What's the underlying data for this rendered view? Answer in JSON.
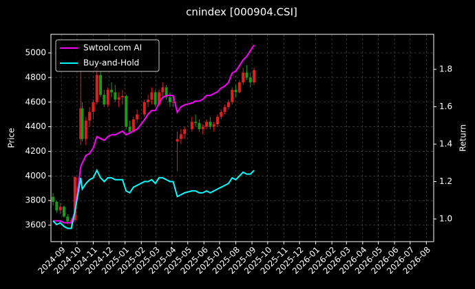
{
  "chart_data": {
    "type": "candlestick",
    "title": "cnindex [000904.CSI]",
    "ylabel": "Price",
    "y2label": "Return",
    "x": [
      "2024-08-16",
      "2024-08-23",
      "2024-08-30",
      "2024-09-06",
      "2024-09-13",
      "2024-09-20",
      "2024-09-27",
      "2024-10-08",
      "2024-10-11",
      "2024-10-18",
      "2024-10-25",
      "2024-11-01",
      "2024-11-08",
      "2024-11-15",
      "2024-11-22",
      "2024-11-29",
      "2024-12-06",
      "2024-12-13",
      "2024-12-20",
      "2024-12-27",
      "2025-01-03",
      "2025-01-10",
      "2025-01-17",
      "2025-01-24",
      "2025-02-07",
      "2025-02-14",
      "2025-02-21",
      "2025-02-28",
      "2025-03-07",
      "2025-03-14",
      "2025-03-21",
      "2025-03-28",
      "2025-04-03",
      "2025-04-11",
      "2025-04-18",
      "2025-04-25",
      "2025-05-09",
      "2025-05-16",
      "2025-05-23",
      "2025-05-30",
      "2025-06-06",
      "2025-06-13",
      "2025-06-20",
      "2025-06-27",
      "2025-07-04",
      "2025-07-11",
      "2025-07-18",
      "2025-07-25",
      "2025-08-01",
      "2025-08-08",
      "2025-08-15",
      "2025-08-22",
      "2025-08-29",
      "2025-09-05"
    ],
    "open": [
      3830,
      3790,
      3720,
      3750,
      3670,
      3630,
      3640,
      4300,
      4550,
      4300,
      4450,
      4520,
      4600,
      4820,
      4660,
      4580,
      4700,
      4680,
      4620,
      4640,
      4650,
      4400,
      4360,
      4460,
      4500,
      4600,
      4620,
      4680,
      4580,
      4680,
      4720,
      4640,
      4600,
      4280,
      4300,
      4340,
      4380,
      4440,
      4430,
      4380,
      4400,
      4440,
      4400,
      4420,
      4480,
      4520,
      4560,
      4600,
      4700,
      4680,
      4760,
      4840,
      4800,
      4760
    ],
    "high": [
      3860,
      3800,
      3780,
      3760,
      3690,
      3660,
      4000,
      4950,
      4600,
      4480,
      4560,
      4620,
      4880,
      4850,
      4700,
      4720,
      4760,
      4740,
      4680,
      4700,
      4660,
      4450,
      4480,
      4540,
      4620,
      4660,
      4720,
      4700,
      4700,
      4760,
      4740,
      4680,
      4640,
      4360,
      4380,
      4400,
      4480,
      4500,
      4460,
      4420,
      4460,
      4480,
      4440,
      4500,
      4540,
      4580,
      4620,
      4720,
      4740,
      4780,
      4880,
      4900,
      4840,
      4880
    ],
    "low": [
      3760,
      3700,
      3690,
      3660,
      3610,
      3590,
      3620,
      4250,
      4280,
      4250,
      4400,
      4460,
      4580,
      4640,
      4560,
      4560,
      4640,
      4600,
      4560,
      4580,
      4380,
      4340,
      4350,
      4430,
      4480,
      4560,
      4580,
      4560,
      4570,
      4640,
      4620,
      4560,
      4560,
      4040,
      4260,
      4300,
      4360,
      4400,
      4360,
      4340,
      4380,
      4380,
      4360,
      4400,
      4460,
      4500,
      4540,
      4580,
      4640,
      4670,
      4740,
      4780,
      4720,
      4740
    ],
    "close": [
      3790,
      3720,
      3750,
      3670,
      3630,
      3640,
      3990,
      4550,
      4300,
      4450,
      4520,
      4600,
      4820,
      4660,
      4580,
      4700,
      4680,
      4620,
      4640,
      4650,
      4400,
      4360,
      4460,
      4500,
      4600,
      4620,
      4680,
      4580,
      4680,
      4720,
      4640,
      4600,
      4600,
      4300,
      4340,
      4380,
      4440,
      4430,
      4380,
      4400,
      4440,
      4400,
      4420,
      4480,
      4520,
      4560,
      4600,
      4700,
      4680,
      4760,
      4840,
      4800,
      4760,
      4860
    ],
    "up_color": "#e02020",
    "down_color": "#1a9a1a",
    "series": [
      {
        "name": "Swtool.com AI",
        "color": "#ff00ff",
        "axis": "y2",
        "values": [
          0.99,
          0.99,
          0.99,
          0.98,
          0.98,
          0.98,
          1.04,
          1.28,
          1.3,
          1.34,
          1.35,
          1.38,
          1.44,
          1.43,
          1.42,
          1.44,
          1.45,
          1.45,
          1.46,
          1.47,
          1.45,
          1.46,
          1.47,
          1.48,
          1.53,
          1.56,
          1.58,
          1.58,
          1.62,
          1.65,
          1.66,
          1.66,
          1.66,
          1.57,
          1.6,
          1.61,
          1.62,
          1.63,
          1.63,
          1.64,
          1.66,
          1.66,
          1.67,
          1.68,
          1.7,
          1.71,
          1.73,
          1.78,
          1.79,
          1.82,
          1.85,
          1.87,
          1.9,
          1.93
        ]
      },
      {
        "name": "Buy-and-Hold",
        "color": "#00ffff",
        "axis": "y2",
        "values": [
          0.99,
          0.97,
          0.98,
          0.96,
          0.95,
          0.95,
          1.04,
          1.22,
          1.16,
          1.19,
          1.21,
          1.22,
          1.26,
          1.22,
          1.2,
          1.22,
          1.22,
          1.21,
          1.21,
          1.21,
          1.15,
          1.14,
          1.17,
          1.18,
          1.2,
          1.2,
          1.21,
          1.19,
          1.22,
          1.22,
          1.21,
          1.2,
          1.2,
          1.12,
          1.13,
          1.14,
          1.15,
          1.15,
          1.14,
          1.14,
          1.15,
          1.14,
          1.15,
          1.16,
          1.17,
          1.18,
          1.19,
          1.22,
          1.21,
          1.23,
          1.25,
          1.24,
          1.24,
          1.26
        ]
      }
    ],
    "xlim": [
      "2024-08-12",
      "2026-08-15"
    ],
    "xticks": [
      "2024-09",
      "2024-10",
      "2024-11",
      "2024-12",
      "2025-01",
      "2025-02",
      "2025-03",
      "2025-04",
      "2025-05",
      "2025-06",
      "2025-07",
      "2025-08",
      "2025-09",
      "2025-10",
      "2025-11",
      "2025-12",
      "2026-01",
      "2026-02",
      "2026-03",
      "2026-04",
      "2026-05",
      "2026-06",
      "2026-07",
      "2026-08"
    ],
    "ylim": [
      3466,
      5151
    ],
    "yticks": [
      3600,
      3800,
      4000,
      4200,
      4400,
      4600,
      4800,
      5000
    ],
    "y2lim": [
      0.879,
      1.987
    ],
    "y2ticks": [
      {
        "value": 1,
        "label": "1.0"
      },
      1.2,
      1.4,
      1.6,
      1.8
    ],
    "grid": true,
    "legend": "upper left"
  }
}
